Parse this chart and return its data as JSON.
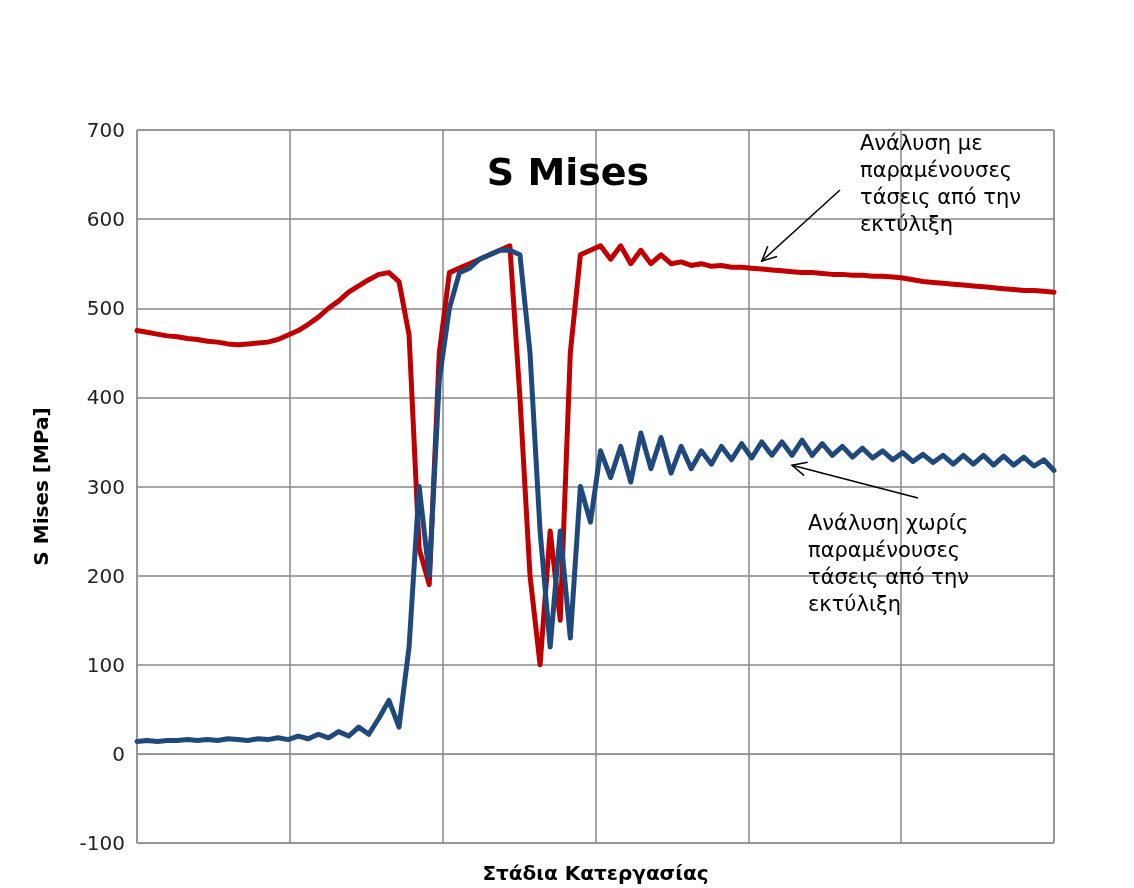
{
  "chart_data": {
    "type": "line",
    "title": "S Mises",
    "xlabel": "Στάδια Κατεργασίας",
    "ylabel": "S Mises [MPa]",
    "categories": [
      null,
      null,
      null,
      null,
      null,
      null,
      null,
      null,
      null,
      null,
      null,
      null,
      null,
      null,
      null,
      null,
      null,
      null,
      null,
      null,
      null,
      null,
      null,
      null,
      null,
      null,
      null,
      null,
      null,
      null,
      null,
      null,
      null,
      null,
      null,
      null,
      null,
      null,
      null,
      null,
      null,
      null,
      null,
      null,
      null,
      null,
      null,
      null,
      null,
      null,
      null,
      null,
      null,
      null,
      null,
      null,
      null,
      null,
      null,
      null,
      null,
      null,
      null,
      null,
      null,
      null,
      null,
      null,
      null,
      null,
      null,
      null,
      null,
      null,
      null,
      null,
      null,
      null,
      null,
      null,
      null,
      null,
      null,
      null,
      null,
      null,
      null,
      null,
      null,
      null,
      null,
      null
    ],
    "series": [
      {
        "name": "Ανάλυση με παραμένουσες τάσεις από την εκτύλιξη",
        "color": "#c00000",
        "values": [
          475,
          473,
          471,
          469,
          468,
          466,
          465,
          463,
          462,
          460,
          459,
          460,
          461,
          462,
          465,
          470,
          475,
          482,
          490,
          500,
          508,
          518,
          525,
          532,
          538,
          540,
          530,
          470,
          230,
          190,
          450,
          540,
          545,
          550,
          555,
          560,
          565,
          570,
          400,
          200,
          100,
          250,
          150,
          450,
          560,
          565,
          570,
          555,
          570,
          550,
          565,
          550,
          560,
          550,
          552,
          548,
          550,
          547,
          548,
          546,
          546,
          545,
          544,
          543,
          542,
          541,
          540,
          540,
          539,
          538,
          538,
          537,
          537,
          536,
          536,
          535,
          534,
          532,
          530,
          529,
          528,
          527,
          526,
          525,
          524,
          523,
          522,
          521,
          520,
          520,
          519,
          518
        ]
      },
      {
        "name": "Ανάλυση χωρίς παραμένουσες τάσεις από την εκτύλιξη",
        "color": "#1f497d",
        "values": [
          14,
          15,
          14,
          15,
          15,
          16,
          15,
          16,
          15,
          17,
          16,
          15,
          17,
          16,
          18,
          16,
          20,
          17,
          22,
          18,
          25,
          20,
          30,
          22,
          40,
          60,
          30,
          120,
          300,
          200,
          420,
          500,
          540,
          545,
          555,
          560,
          565,
          565,
          560,
          450,
          250,
          120,
          250,
          130,
          300,
          260,
          340,
          310,
          345,
          305,
          360,
          320,
          355,
          315,
          345,
          320,
          340,
          325,
          345,
          330,
          348,
          332,
          350,
          335,
          350,
          335,
          352,
          335,
          348,
          335,
          345,
          333,
          343,
          332,
          340,
          330,
          338,
          328,
          336,
          327,
          335,
          325,
          335,
          325,
          335,
          324,
          334,
          324,
          333,
          323,
          330,
          318
        ]
      }
    ],
    "ylim": [
      -100,
      700
    ],
    "yticks": [
      -100,
      0,
      100,
      200,
      300,
      400,
      500,
      600,
      700
    ],
    "grid": true,
    "legend": false,
    "marker": "none",
    "line_style": "solid",
    "tick_labels": "y"
  }
}
